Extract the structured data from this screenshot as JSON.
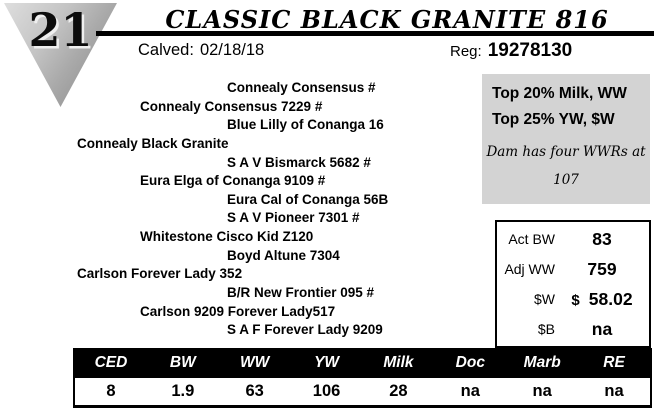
{
  "lot": {
    "number": "21"
  },
  "header": {
    "title": "CLASSIC BLACK GRANITE 816",
    "calved_label": "Calved:",
    "calved_value": "02/18/18",
    "reg_label": "Reg:",
    "reg_value": "19278130"
  },
  "pedigree": [
    {
      "name": "Connealy Consensus #",
      "level": 3
    },
    {
      "name": "Connealy Consensus 7229 #",
      "level": 2
    },
    {
      "name": "Blue Lilly of Conanga 16",
      "level": 3
    },
    {
      "name": "Connealy Black Granite",
      "level": 1
    },
    {
      "name": "S A V Bismarck 5682 #",
      "level": 3
    },
    {
      "name": "Eura Elga of Conanga 9109 #",
      "level": 2
    },
    {
      "name": "Eura Cal of Conanga 56B",
      "level": 3
    },
    {
      "name": "S A V Pioneer 7301 #",
      "level": 3
    },
    {
      "name": "Whitestone Cisco Kid Z120",
      "level": 2
    },
    {
      "name": "Boyd Altune 7304",
      "level": 3
    },
    {
      "name": "Carlson Forever Lady 352",
      "level": 1
    },
    {
      "name": "B/R New Frontier 095 #",
      "level": 3
    },
    {
      "name": "Carlson 9209 Forever Lady517",
      "level": 2
    },
    {
      "name": "S A F Forever Lady 9209",
      "level": 3
    }
  ],
  "highlights": {
    "lines": [
      "Top 20% Milk, WW",
      "Top 25% YW, $W"
    ],
    "note_line1": "Dam has four WWRs at",
    "note_line2": "107"
  },
  "stats": {
    "rows": [
      {
        "label": "Act BW",
        "prefix": "",
        "value": "83"
      },
      {
        "label": "Adj WW",
        "prefix": "",
        "value": "759"
      },
      {
        "label": "$W",
        "prefix": "$",
        "value": "58.02"
      },
      {
        "label": "$B",
        "prefix": "",
        "value": "na"
      }
    ]
  },
  "epd_table": {
    "headers": [
      "CED",
      "BW",
      "WW",
      "YW",
      "Milk",
      "Doc",
      "Marb",
      "RE"
    ],
    "values": [
      "8",
      "1.9",
      "63",
      "106",
      "28",
      "na",
      "na",
      "na"
    ]
  },
  "colors": {
    "highlight_box_bg": "#d3d3d3",
    "epd_header_bg": "#000000",
    "epd_header_text": "#ffffff",
    "triangle_gray": "#aaaaaa"
  }
}
